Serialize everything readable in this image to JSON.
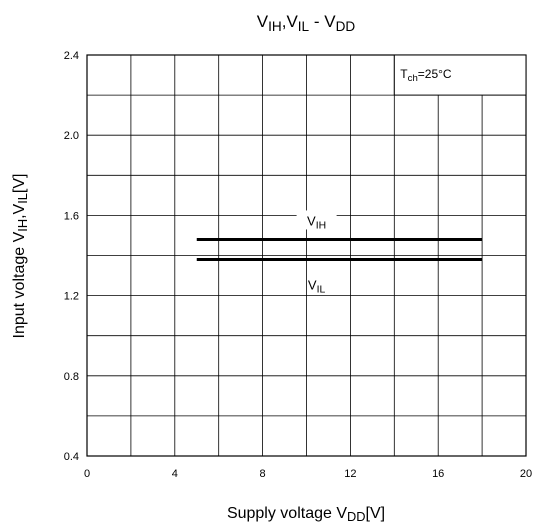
{
  "chart_data": {
    "type": "line",
    "title": {
      "parts": [
        {
          "text": "V"
        },
        {
          "text": "IH",
          "sub": true
        },
        {
          "text": ",V"
        },
        {
          "text": "IL",
          "sub": true
        },
        {
          "text": " - V"
        },
        {
          "text": "DD",
          "sub": true
        }
      ]
    },
    "xlabel": {
      "parts": [
        {
          "text": "Supply voltage V"
        },
        {
          "text": "DD",
          "sub": true
        },
        {
          "text": "[V]"
        }
      ]
    },
    "ylabel": {
      "parts": [
        {
          "text": "Input voltage V"
        },
        {
          "text": "IH",
          "sub": true
        },
        {
          "text": ",V"
        },
        {
          "text": "IL",
          "sub": true
        },
        {
          "text": "[V]"
        }
      ]
    },
    "xlim": [
      0,
      20
    ],
    "ylim": [
      0.4,
      2.4
    ],
    "x_ticks": [
      "0",
      "4",
      "8",
      "12",
      "16",
      "20"
    ],
    "y_ticks": [
      "0.4",
      "0.8",
      "1.2",
      "1.6",
      "2.0",
      "2.4"
    ],
    "grid": true,
    "annotation": {
      "parts": [
        {
          "text": "T"
        },
        {
          "text": "ch",
          "sub": true
        },
        {
          "text": "=25°C"
        }
      ]
    },
    "series": [
      {
        "name": "VIH",
        "label_parts": [
          {
            "text": "V"
          },
          {
            "text": "IH",
            "sub": true
          }
        ],
        "x": [
          5,
          18
        ],
        "y": [
          1.48,
          1.48
        ]
      },
      {
        "name": "VIL",
        "label_parts": [
          {
            "text": "V"
          },
          {
            "text": "IL",
            "sub": true
          }
        ],
        "x": [
          5,
          18
        ],
        "y": [
          1.38,
          1.38
        ]
      }
    ]
  }
}
